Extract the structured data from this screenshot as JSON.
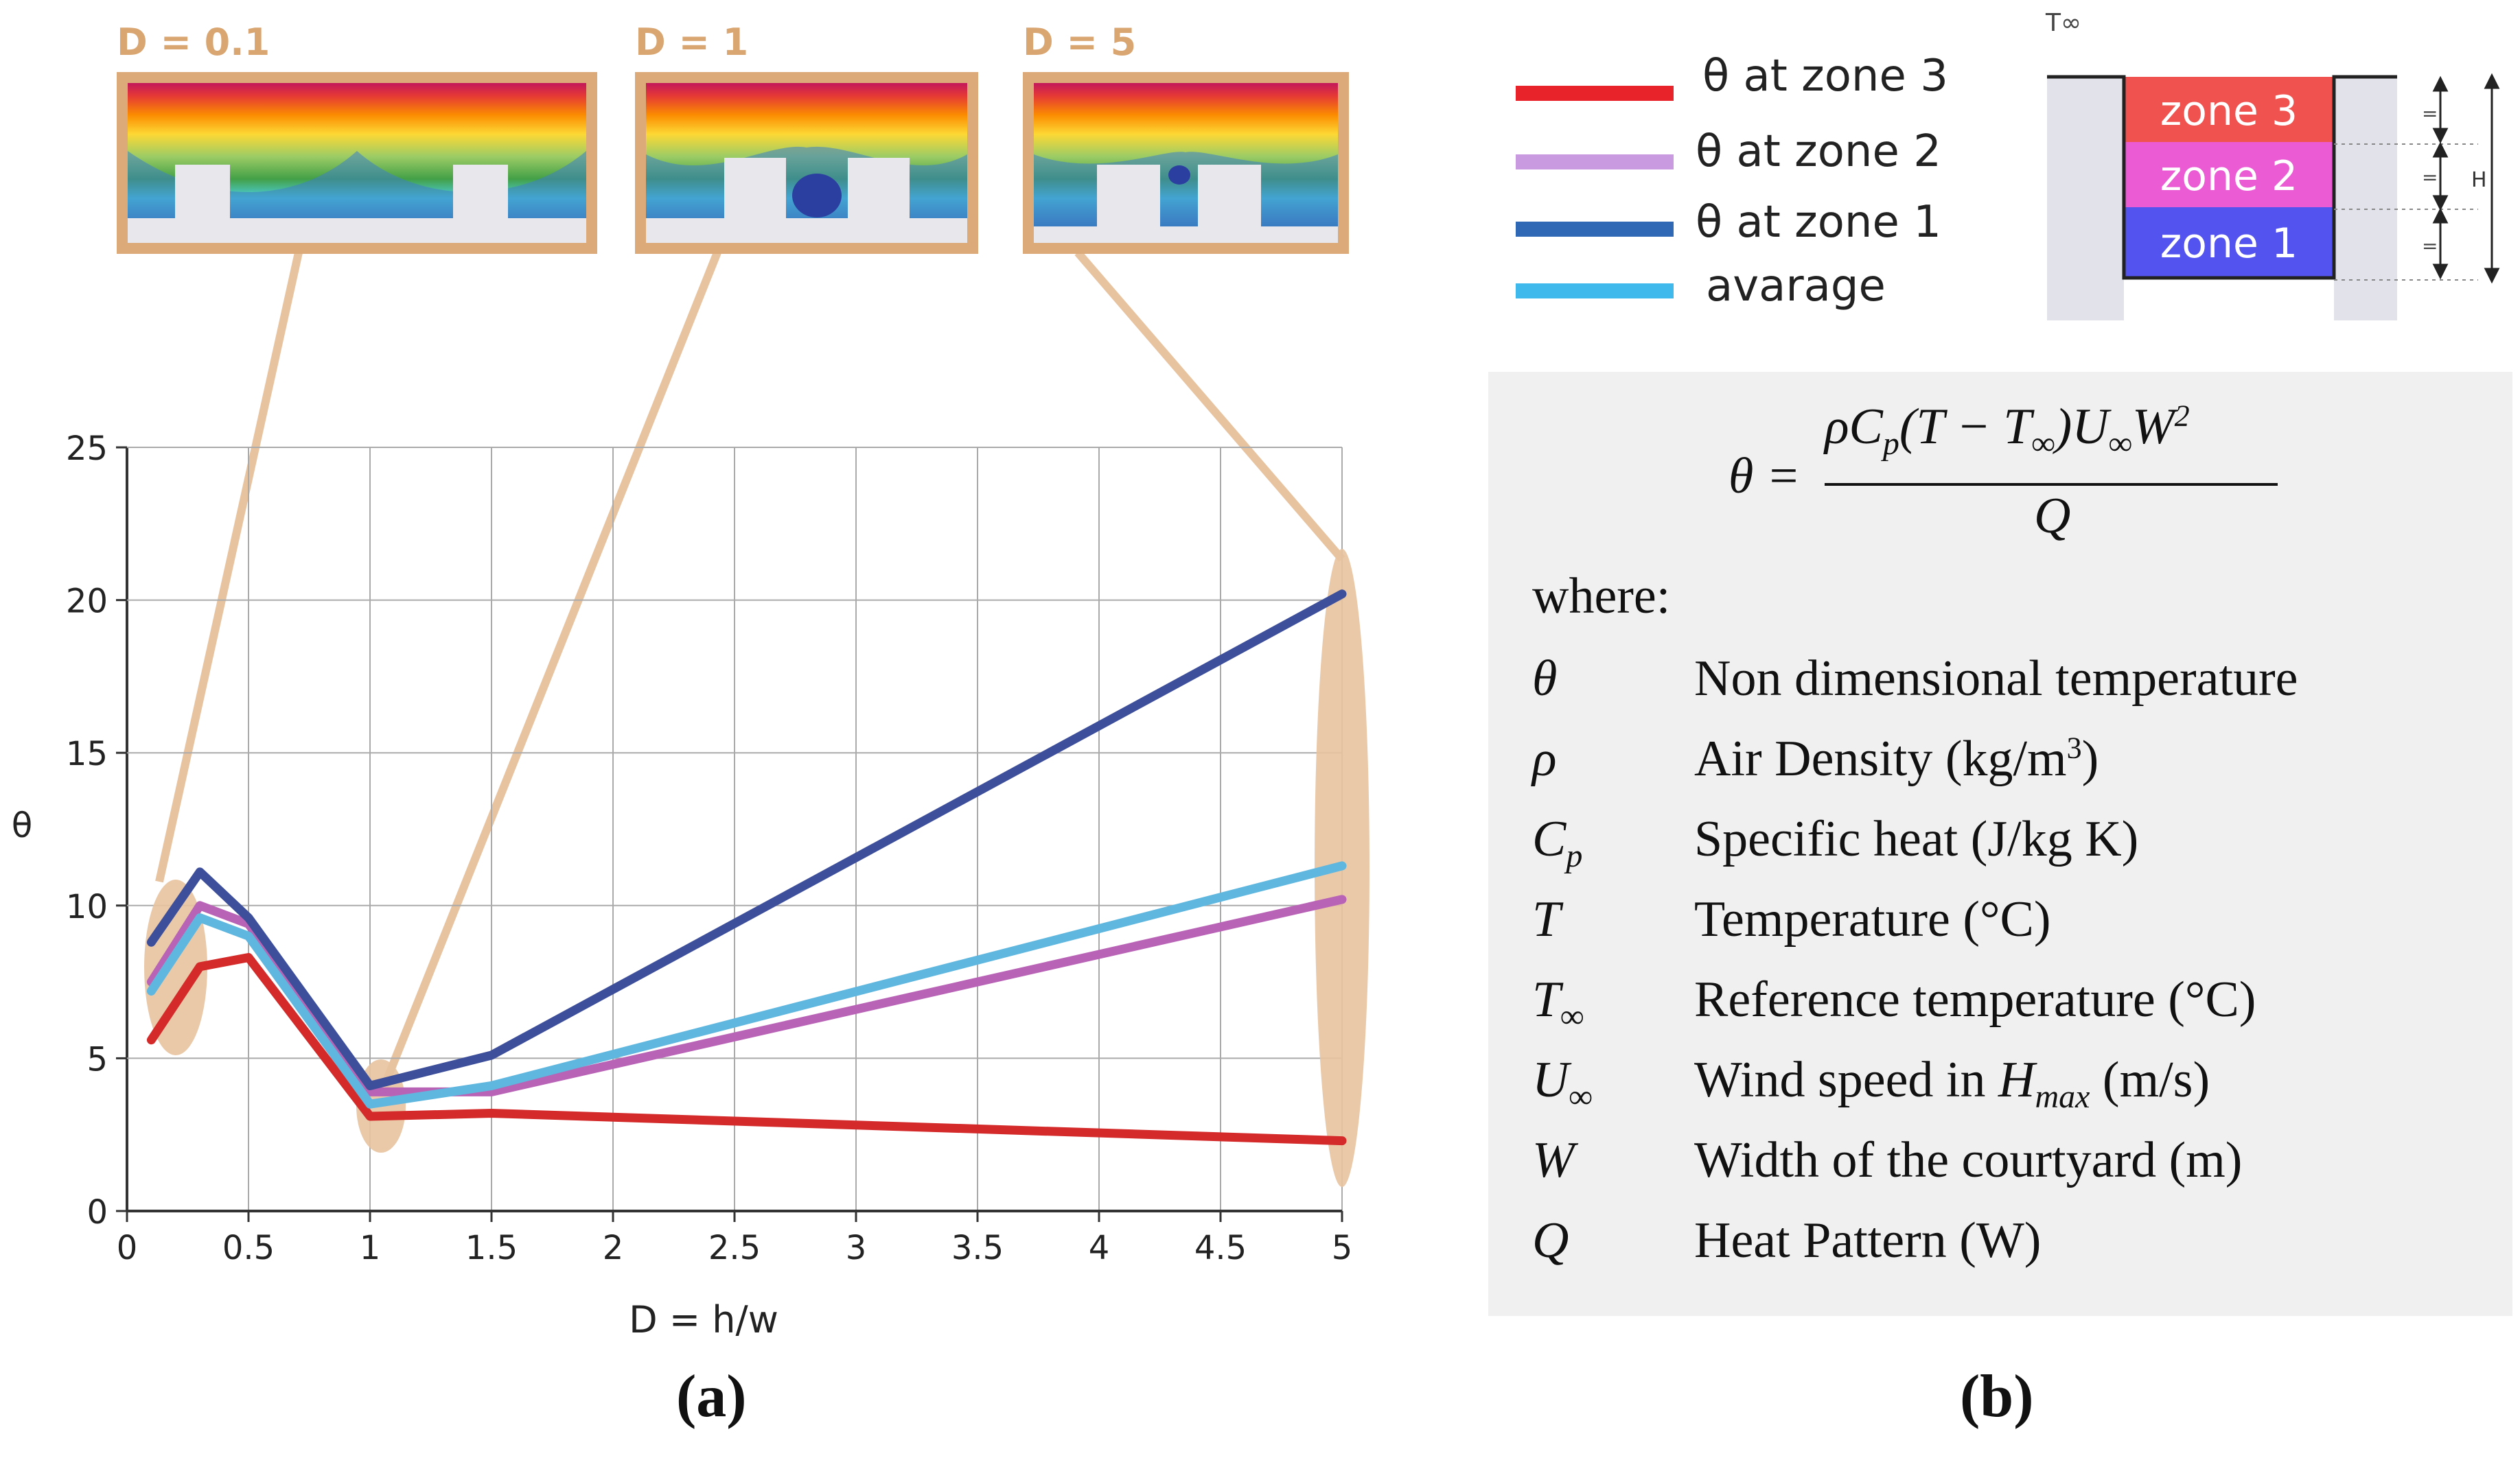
{
  "chart_data": {
    "type": "line",
    "xlabel": "D = h/w",
    "ylabel": "θ",
    "xlim": [
      0,
      5
    ],
    "ylim": [
      0,
      25
    ],
    "xticks": [
      "0",
      "0.5",
      "1",
      "1.5",
      "2",
      "2.5",
      "3",
      "3.5",
      "4",
      "4.5",
      "5"
    ],
    "yticks": [
      "0",
      "5",
      "10",
      "15",
      "20",
      "25"
    ],
    "grid": true,
    "legend_position": "top-right",
    "series": [
      {
        "name": "θ at zone 3",
        "color": "#d42a2a",
        "x": [
          0.1,
          0.3,
          0.5,
          1,
          1.5,
          5
        ],
        "y": [
          5.6,
          8.0,
          8.3,
          3.1,
          3.2,
          2.3
        ]
      },
      {
        "name": "θ at zone 2",
        "color": "#b963b6",
        "x": [
          0.1,
          0.3,
          0.5,
          1,
          1.5,
          5
        ],
        "y": [
          7.5,
          10.0,
          9.4,
          3.9,
          3.9,
          10.2
        ]
      },
      {
        "name": "θ at zone 1",
        "color": "#3d4e9a",
        "x": [
          0.1,
          0.3,
          0.5,
          1,
          1.5,
          5
        ],
        "y": [
          8.8,
          11.1,
          9.6,
          4.1,
          5.1,
          20.2
        ]
      },
      {
        "name": "avarage",
        "color": "#5fb7df",
        "x": [
          0.1,
          0.3,
          0.5,
          1,
          1.5,
          5
        ],
        "y": [
          7.2,
          9.6,
          9.0,
          3.5,
          4.1,
          11.3
        ]
      }
    ],
    "annotations": [
      "D = 0.1",
      "D = 1",
      "D = 5"
    ]
  },
  "thumbnails": {
    "d01": "D = 0.1",
    "d1": "D = 1",
    "d5": "D = 5"
  },
  "legend": {
    "zone3": "θ at zone 3",
    "zone2": "θ at zone 2",
    "zone1": "θ at zone 1",
    "average": "avarage"
  },
  "courtyard_diagram": {
    "t_inf": "T∞",
    "zone3": "zone 3",
    "zone2": "zone 2",
    "zone1": "zone 1",
    "equal_marks": [
      "=",
      "=",
      "="
    ],
    "height_label": "H",
    "colors": {
      "zone3": "#f0534f",
      "zone2": "#ea5bd4",
      "zone1": "#5353f0",
      "walls": "#e2e2ea"
    }
  },
  "formula": {
    "lhs": "θ =",
    "numerator": "ρC",
    "num_cp_sub": "p",
    "num_paren": "(T − T",
    "num_tinf_sub": "∞",
    "num_close": ")U",
    "num_uinf_sub": "∞",
    "num_w": "W",
    "num_exp": "2",
    "denominator": "Q",
    "where": "where:",
    "definitions": [
      {
        "sym": "θ",
        "desc": "Non dimensional temperature"
      },
      {
        "sym": "ρ",
        "desc": "Air Density (kg/m",
        "sup": "3",
        "tail": ")"
      },
      {
        "sym": "C",
        "sub": "p",
        "desc": "Specific heat (J/kg K)"
      },
      {
        "sym": "T",
        "desc": "Temperature (°C)"
      },
      {
        "sym": "T",
        "sub": "∞",
        "desc": "Reference temperature (°C)"
      },
      {
        "sym": "U",
        "sub": "∞",
        "desc": "Wind speed in ",
        "desc_it": "H",
        "desc_sub": "max",
        "tail": " (m/s)"
      },
      {
        "sym": "W",
        "desc": "Width of the courtyard (m)"
      },
      {
        "sym": "Q",
        "desc": "Heat Pattern (W)"
      }
    ]
  },
  "panel_labels": {
    "a": "(a)",
    "b": "(b)"
  }
}
